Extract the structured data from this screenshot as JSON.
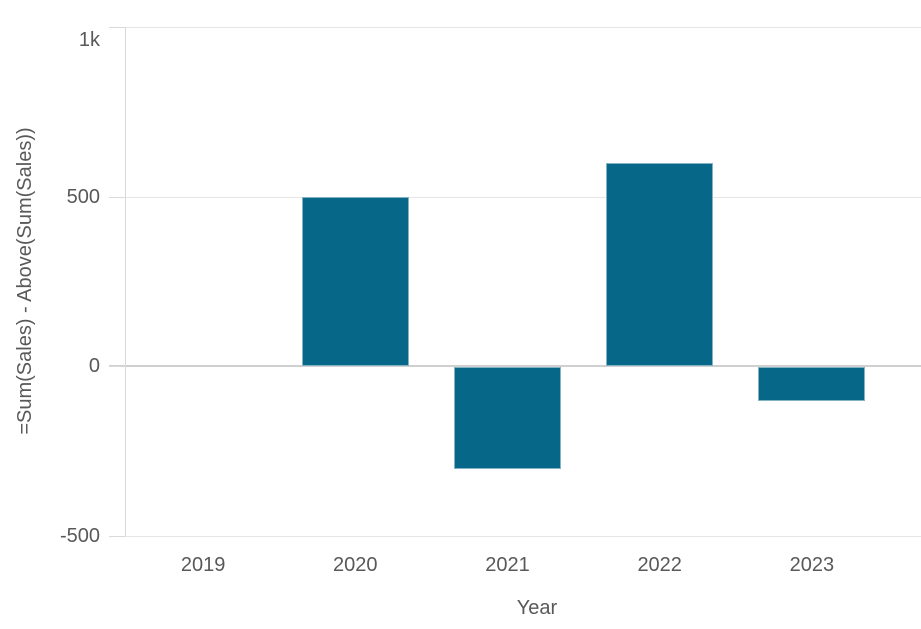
{
  "chart_data": {
    "type": "bar",
    "title": "",
    "xlabel": "Year",
    "ylabel": "=Sum(Sales) - Above(Sum(Sales))",
    "categories": [
      "2019",
      "2020",
      "2021",
      "2022",
      "2023"
    ],
    "values": [
      null,
      500,
      -300,
      600,
      -100
    ],
    "ylim": [
      -500,
      1000
    ],
    "yticks": [
      {
        "value": 1000,
        "label": "1k"
      },
      {
        "value": 500,
        "label": "500"
      },
      {
        "value": 0,
        "label": "0"
      },
      {
        "value": -500,
        "label": "-500"
      }
    ],
    "grid": "horizontal-only",
    "legend": "none",
    "colors": {
      "bar": "#076789",
      "axis_line": "#d9d9d9",
      "gridline": "#e6e6e6",
      "zero_line": "#d0d0d0",
      "text": "#595959"
    }
  }
}
